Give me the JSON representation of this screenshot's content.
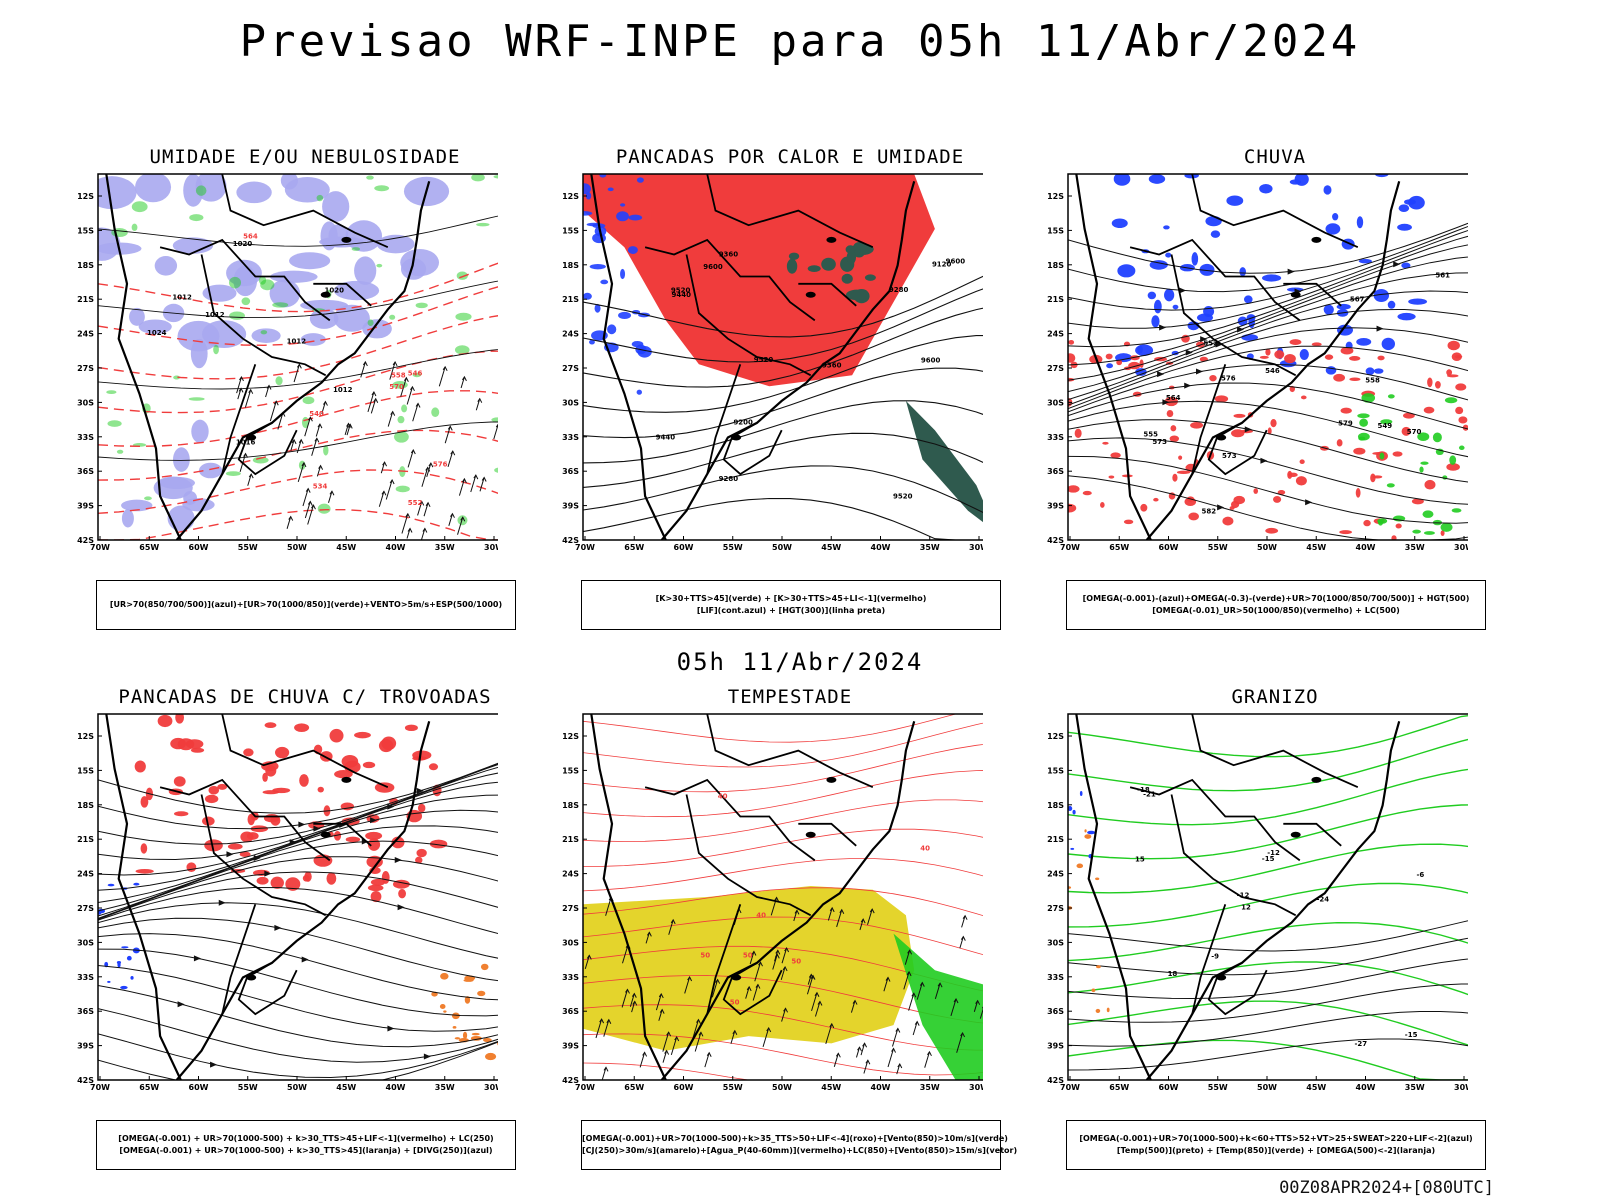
{
  "title": "Previsao WRF-INPE  para 05h 11/Abr/2024",
  "subtitle": "05h 11/Abr/2024",
  "footer": "00Z08APR2024+[080UTC]",
  "axes": {
    "lat_labels": [
      "12S",
      "15S",
      "18S",
      "21S",
      "24S",
      "27S",
      "30S",
      "33S",
      "36S",
      "39S",
      "42S"
    ],
    "lon_labels": [
      "70W",
      "65W",
      "60W",
      "55W",
      "50W",
      "45W",
      "40W",
      "35W",
      "30W"
    ]
  },
  "colors": {
    "red": "#f03c3c",
    "blue": "#2040ff",
    "green": "#20cc20",
    "lavender": "#a8a8f0",
    "yellow": "#e4d42c",
    "darkgreen": "#2f5a4e",
    "orange": "#f08030"
  },
  "panels": [
    {
      "id": "p1",
      "title": "UMIDADE E/OU NEBULOSIDADE",
      "legend": [
        "[UR>70(850/700/500)](azul)+[UR>70(1000/850)](verde)+VENTO>5m/s+ESP(500/1000)"
      ],
      "contour_labels": [
        "1012",
        "1012",
        "1012",
        "1020",
        "1016",
        "1020",
        "1024",
        "1012",
        "576",
        "570",
        "564",
        "558",
        "552",
        "546",
        "540",
        "534"
      ]
    },
    {
      "id": "p2",
      "title": "PANCADAS POR CALOR E UMIDADE",
      "legend": [
        "[K>30+TTS>45](verde) + [K>30+TTS>45+LI<-1](vermelho)",
        "[LIF](cont.azul) + [HGT(300)](linha preta)"
      ],
      "contour_labels": [
        "9600",
        "9600",
        "9520",
        "9520",
        "9440",
        "9440",
        "9360",
        "9280",
        "9200",
        "9120",
        "9280",
        "9360",
        "9520",
        "9600"
      ]
    },
    {
      "id": "p3",
      "title": "CHUVA",
      "legend": [
        "[OMEGA(-0.001)-(azul)+OMEGA(-0.3)-(verde)+UR>70(1000/850/700/500)] + HGT(500)",
        "[OMEGA(-0.01)_UR>50(1000/850)(vermelho) + LC(500)"
      ],
      "contour_labels": [
        "582",
        "579",
        "576",
        "573",
        "570",
        "567",
        "564",
        "561",
        "558",
        "555",
        "552",
        "549",
        "546",
        "573"
      ]
    },
    {
      "id": "p4",
      "title": "PANCADAS DE CHUVA C/ TROVOADAS",
      "legend": [
        "[OMEGA(-0.001) + UR>70(1000-500) + k>30_TTS>45+LIF<-1](vermelho) + LC(250)",
        "[OMEGA(-0.001) + UR>70(1000-500) + k>30_TTS>45](laranja) + [DIVG(250)](azul)"
      ],
      "contour_labels": []
    },
    {
      "id": "p5",
      "title": "TEMPESTADE",
      "legend": [
        "[OMEGA(-0.001)+UR>70(1000-500)+k>35_TTS>50+LIF<-4](roxo)+[Vento(850)>10m/s](verde)",
        "[CJ(250)>30m/s](amarelo)+[Agua_P(40-60mm)](vermelho)+LC(850)+[Vento(850)>15m/s](vetor)"
      ],
      "contour_labels": [
        "50",
        "40",
        "50",
        "40",
        "50",
        "40",
        "50"
      ]
    },
    {
      "id": "p6",
      "title": "GRANIZO",
      "legend": [
        "[OMEGA(-0.001)+UR>70(1000-500)+k<60+TTS>52+VT>25+SWEAT>220+LIF<-2](azul)",
        "[Temp(500)](preto) + [Temp(850)](verde) + [OMEGA(500)<-2](laranja)"
      ],
      "contour_labels": [
        "12",
        "15",
        "18",
        "-6",
        "-9",
        "-12",
        "-15",
        "-18",
        "-21",
        "-24",
        "-27",
        "-12",
        "-15"
      ]
    }
  ]
}
